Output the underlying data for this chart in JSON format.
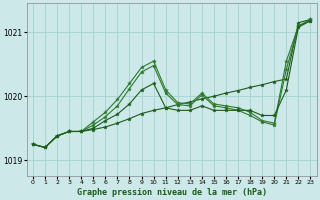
{
  "title": "Graphe pression niveau de la mer (hPa)",
  "background_color": "#cde8e8",
  "grid_color": "#aad4d4",
  "line_color_dark": "#1a5c1a",
  "line_color_medium": "#2d7a2d",
  "xlim": [
    -0.5,
    23.5
  ],
  "ylim": [
    1018.75,
    1021.45
  ],
  "yticks": [
    1019,
    1020,
    1021
  ],
  "xticks": [
    0,
    1,
    2,
    3,
    4,
    5,
    6,
    7,
    8,
    9,
    10,
    11,
    12,
    13,
    14,
    15,
    16,
    17,
    18,
    19,
    20,
    21,
    22,
    23
  ],
  "series": [
    {
      "y": [
        1019.25,
        1019.2,
        1019.38,
        1019.45,
        1019.45,
        1019.48,
        1019.52,
        1019.58,
        1019.65,
        1019.73,
        1019.78,
        1019.82,
        1019.87,
        1019.91,
        1019.96,
        1020.0,
        1020.05,
        1020.09,
        1020.14,
        1020.18,
        1020.23,
        1020.27,
        1021.15,
        1021.2
      ],
      "color": "#1a5c1a",
      "lw": 0.8,
      "marker": true
    },
    {
      "y": [
        1019.25,
        1019.2,
        1019.38,
        1019.45,
        1019.45,
        1019.6,
        1019.75,
        1019.95,
        1020.2,
        1020.45,
        1020.55,
        1020.1,
        1019.9,
        1019.88,
        1020.05,
        1019.88,
        1019.85,
        1019.82,
        1019.75,
        1019.62,
        1019.58,
        1020.55,
        1021.1,
        1021.2
      ],
      "color": "#2d7a2d",
      "lw": 0.8,
      "marker": true
    },
    {
      "y": [
        1019.25,
        1019.2,
        1019.38,
        1019.45,
        1019.45,
        1019.55,
        1019.68,
        1019.85,
        1020.12,
        1020.38,
        1020.48,
        1020.05,
        1019.87,
        1019.85,
        1020.02,
        1019.85,
        1019.82,
        1019.78,
        1019.7,
        1019.6,
        1019.55,
        1020.42,
        1021.1,
        1021.18
      ],
      "color": "#2d7a2d",
      "lw": 0.8,
      "marker": true
    },
    {
      "y": [
        1019.25,
        1019.2,
        1019.38,
        1019.45,
        1019.45,
        1019.5,
        1019.62,
        1019.72,
        1019.88,
        1020.1,
        1020.2,
        1019.82,
        1019.78,
        1019.78,
        1019.85,
        1019.78,
        1019.78,
        1019.78,
        1019.78,
        1019.7,
        1019.7,
        1020.1,
        1021.08,
        1021.18
      ],
      "color": "#1a5c1a",
      "lw": 0.8,
      "marker": true
    }
  ]
}
